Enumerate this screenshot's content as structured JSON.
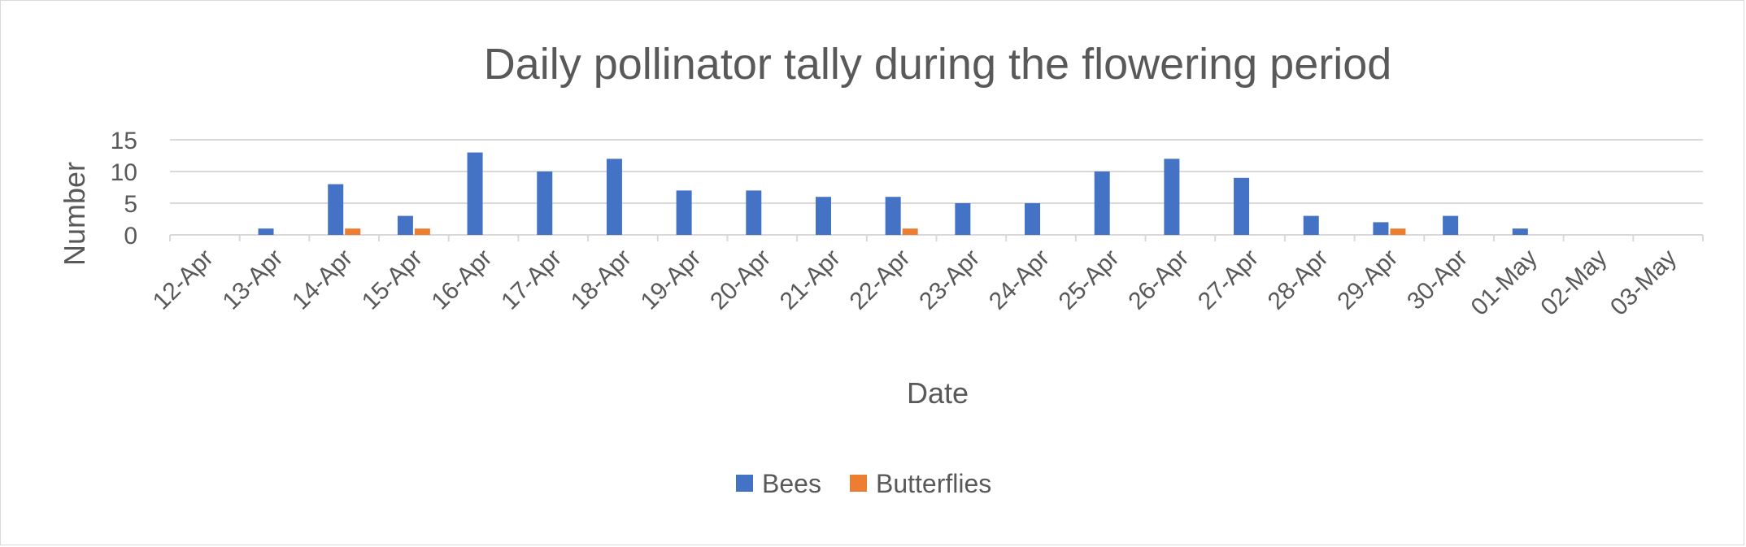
{
  "chart_data": {
    "type": "bar",
    "title": "Daily pollinator tally during the flowering period",
    "xlabel": "Date",
    "ylabel": "Number",
    "ylim": [
      0,
      15
    ],
    "yticks": [
      0,
      5,
      10,
      15
    ],
    "grid": true,
    "legend_position": "bottom",
    "categories": [
      "12-Apr",
      "13-Apr",
      "14-Apr",
      "15-Apr",
      "16-Apr",
      "17-Apr",
      "18-Apr",
      "19-Apr",
      "20-Apr",
      "21-Apr",
      "22-Apr",
      "23-Apr",
      "24-Apr",
      "25-Apr",
      "26-Apr",
      "27-Apr",
      "28-Apr",
      "29-Apr",
      "30-Apr",
      "01-May",
      "02-May",
      "03-May"
    ],
    "series": [
      {
        "name": "Bees",
        "color": "#4472C4",
        "values": [
          0,
          1,
          8,
          3,
          13,
          10,
          12,
          7,
          7,
          6,
          6,
          5,
          5,
          10,
          12,
          9,
          3,
          2,
          3,
          1,
          0,
          0
        ]
      },
      {
        "name": "Butterflies",
        "color": "#ED7D31",
        "values": [
          0,
          0,
          1,
          1,
          0,
          0,
          0,
          0,
          0,
          0,
          1,
          0,
          0,
          0,
          0,
          0,
          0,
          1,
          0,
          0,
          0,
          0
        ]
      }
    ]
  }
}
